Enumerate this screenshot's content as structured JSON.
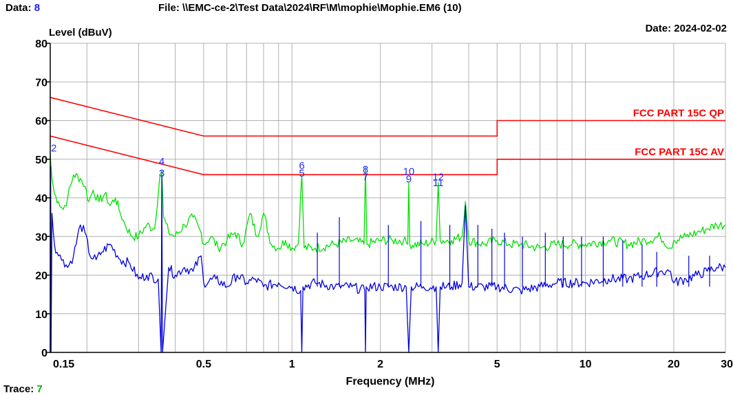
{
  "header": {
    "data_label": "Data:",
    "data_value": "8",
    "file_text": "File: \\\\EMC-ce-2\\Test Data\\2024\\RF\\M\\mophie\\Mophie.EM6  (10)",
    "date_text": "Date: 2024-02-02",
    "trace_label": "Trace:",
    "trace_value": "7"
  },
  "colors": {
    "limit": "#ff0000",
    "qp_trace": "#00e000",
    "av_trace": "#0000dd",
    "grid": "#b0b0b0",
    "marker_text": "#2a2aff"
  },
  "chart_data": {
    "type": "line",
    "ylabel": "Level (dBuV)",
    "xlabel": "Frequency (MHz)",
    "x_scale": "log",
    "xlim": [
      0.15,
      30
    ],
    "ylim": [
      0,
      80
    ],
    "x_ticks": [
      0.15,
      0.5,
      1,
      2,
      5,
      10,
      20,
      30
    ],
    "x_tick_labels": [
      "0.15",
      "0.5",
      "1",
      "2",
      "5",
      "10",
      "20",
      "30"
    ],
    "y_ticks": [
      0,
      10,
      20,
      30,
      40,
      50,
      60,
      70,
      80
    ],
    "y_tick_labels": [
      "0",
      "10",
      "20",
      "30",
      "40",
      "50",
      "60",
      "70",
      "80"
    ],
    "grid": true,
    "limits": [
      {
        "name": "FCC PART 15C QP",
        "x": [
          0.15,
          0.5,
          0.5,
          5,
          5,
          30
        ],
        "y": [
          66,
          56,
          56,
          56,
          60,
          60
        ]
      },
      {
        "name": "FCC PART 15C AV",
        "x": [
          0.15,
          0.5,
          0.5,
          5,
          5,
          30
        ],
        "y": [
          56,
          46,
          46,
          46,
          50,
          50
        ]
      }
    ],
    "series": [
      {
        "color_key": "qp_trace",
        "x": [
          0.15,
          0.152,
          0.155,
          0.16,
          0.166,
          0.172,
          0.18,
          0.19,
          0.197,
          0.203,
          0.21,
          0.22,
          0.23,
          0.24,
          0.25,
          0.26,
          0.27,
          0.285,
          0.3,
          0.32,
          0.34,
          0.355,
          0.36,
          0.365,
          0.38,
          0.4,
          0.43,
          0.46,
          0.49,
          0.5,
          0.53,
          0.56,
          0.6,
          0.64,
          0.68,
          0.72,
          0.76,
          0.8,
          0.85,
          0.9,
          0.95,
          1.0,
          1.05,
          1.08,
          1.1,
          1.2,
          1.4,
          1.6,
          1.76,
          1.78,
          1.8,
          2.0,
          2.2,
          2.4,
          2.48,
          2.5,
          2.52,
          2.8,
          3.1,
          3.15,
          3.2,
          3.5,
          3.8,
          3.9,
          4.0,
          4.5,
          5.0,
          5.5,
          6.0,
          7.0,
          8.0,
          9.0,
          10.0,
          12.0,
          14.0,
          16.0,
          18.0,
          19.5,
          20.0,
          22.0,
          24.0,
          26.0,
          28.0,
          30.0
        ],
        "y": [
          51,
          45,
          41,
          39,
          37,
          40,
          46,
          45,
          43,
          39,
          42,
          39,
          41,
          38,
          40,
          36,
          33,
          30,
          30,
          33,
          32,
          46,
          47,
          35,
          31,
          30,
          33,
          35,
          31,
          28,
          30,
          27,
          29,
          31,
          28,
          36,
          30,
          36,
          28,
          27,
          29,
          27,
          28,
          46,
          27,
          27,
          28,
          29,
          28,
          48,
          28,
          29,
          29,
          29,
          28,
          44,
          28,
          28,
          29,
          44,
          29,
          29,
          30,
          39,
          29,
          28,
          29,
          28,
          28,
          27,
          28,
          28,
          28,
          29,
          28,
          29,
          30,
          27,
          29,
          30,
          31,
          32,
          33,
          33
        ]
      },
      {
        "color_key": "av_trace",
        "x": [
          0.15,
          0.1505,
          0.151,
          0.152,
          0.155,
          0.16,
          0.166,
          0.172,
          0.18,
          0.19,
          0.197,
          0.205,
          0.215,
          0.225,
          0.24,
          0.26,
          0.28,
          0.3,
          0.32,
          0.35,
          0.358,
          0.36,
          0.362,
          0.38,
          0.4,
          0.43,
          0.46,
          0.49,
          0.5,
          0.55,
          0.6,
          0.65,
          0.7,
          0.75,
          0.8,
          0.9,
          1.0,
          1.07,
          1.08,
          1.09,
          1.2,
          1.4,
          1.6,
          1.77,
          1.78,
          1.79,
          2.0,
          2.2,
          2.45,
          2.5,
          2.55,
          2.8,
          3.1,
          3.15,
          3.2,
          3.5,
          3.8,
          3.9,
          4.0,
          4.5,
          5.0,
          6.0,
          7.0,
          8.0,
          10.0,
          12.0,
          14.0,
          16.0,
          18.0,
          19.5,
          20.0,
          22.0,
          24.0,
          26.0,
          28.0,
          30.0
        ],
        "y": [
          0,
          48,
          0,
          36,
          28,
          25,
          24,
          22,
          25,
          33,
          31,
          25,
          24,
          26,
          28,
          24,
          23,
          19,
          20,
          19,
          0,
          46,
          0,
          22,
          20,
          22,
          21,
          25,
          18,
          19,
          17,
          20,
          18,
          19,
          17,
          18,
          17,
          16,
          0,
          17,
          18,
          17,
          17,
          16,
          0,
          17,
          17,
          17,
          17,
          0,
          17,
          17,
          17,
          0,
          17,
          17,
          18,
          38,
          17,
          17,
          17,
          16,
          17,
          18,
          18,
          19,
          19,
          20,
          21,
          21,
          18,
          19,
          20,
          21,
          22,
          22
        ]
      }
    ],
    "spikes": [
      {
        "x": 1.22,
        "top": 31
      },
      {
        "x": 1.45,
        "top": 35
      },
      {
        "x": 2.13,
        "top": 33
      },
      {
        "x": 2.75,
        "top": 34
      },
      {
        "x": 3.45,
        "top": 33
      },
      {
        "x": 4.3,
        "top": 33
      },
      {
        "x": 4.8,
        "top": 32
      },
      {
        "x": 5.3,
        "top": 31
      },
      {
        "x": 6.1,
        "top": 30
      },
      {
        "x": 7.3,
        "top": 31
      },
      {
        "x": 8.4,
        "top": 30
      },
      {
        "x": 9.7,
        "top": 30
      },
      {
        "x": 11.5,
        "top": 30
      },
      {
        "x": 13.4,
        "top": 29
      },
      {
        "x": 15.6,
        "top": 28
      },
      {
        "x": 17.5,
        "top": 26
      },
      {
        "x": 22.5,
        "top": 25
      },
      {
        "x": 26.5,
        "top": 25
      }
    ],
    "markers": [
      {
        "label": "2",
        "x": 0.15,
        "y": 52
      },
      {
        "label": "4",
        "x": 0.36,
        "y": 48.5
      },
      {
        "label": "3",
        "x": 0.36,
        "y": 45.5
      },
      {
        "label": "6",
        "x": 1.08,
        "y": 47.5
      },
      {
        "label": "5",
        "x": 1.08,
        "y": 45.5
      },
      {
        "label": "8",
        "x": 1.78,
        "y": 46.5
      },
      {
        "label": "7",
        "x": 1.78,
        "y": 44.5
      },
      {
        "label": "10",
        "x": 2.5,
        "y": 46
      },
      {
        "label": "9",
        "x": 2.5,
        "y": 44
      },
      {
        "label": "12",
        "x": 3.15,
        "y": 44.5
      },
      {
        "label": "11",
        "x": 3.15,
        "y": 43
      }
    ]
  }
}
